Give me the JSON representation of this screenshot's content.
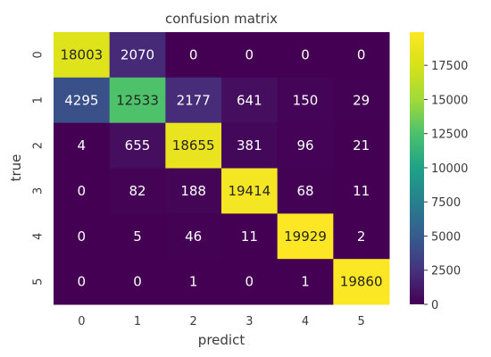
{
  "chart_data": {
    "type": "heatmap",
    "title": "confusion matrix",
    "xlabel": "predict",
    "ylabel": "true",
    "x_categories": [
      "0",
      "1",
      "2",
      "3",
      "4",
      "5"
    ],
    "y_categories": [
      "0",
      "1",
      "2",
      "3",
      "4",
      "5"
    ],
    "values": [
      [
        18003,
        2070,
        0,
        0,
        0,
        0
      ],
      [
        4295,
        12533,
        2177,
        641,
        150,
        29
      ],
      [
        4,
        655,
        18655,
        381,
        96,
        21
      ],
      [
        0,
        82,
        188,
        19414,
        68,
        11
      ],
      [
        0,
        5,
        46,
        11,
        19929,
        2
      ],
      [
        0,
        0,
        1,
        0,
        1,
        19860
      ]
    ],
    "colormap": "viridis",
    "color_range": [
      0,
      19929
    ],
    "colorbar_ticks": [
      0,
      2500,
      5000,
      7500,
      10000,
      12500,
      15000,
      17500
    ],
    "colorbar_labels": [
      "0",
      "2500",
      "5000",
      "7500",
      "10000",
      "12500",
      "15000",
      "17500"
    ]
  }
}
